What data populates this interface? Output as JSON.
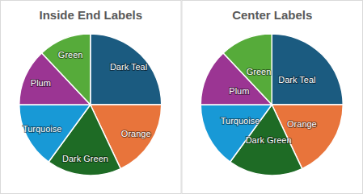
{
  "chart_data": [
    {
      "type": "pie",
      "title": "Inside End Labels",
      "categories": [
        "Dark Teal",
        "Orange",
        "Dark Green",
        "Turquoise",
        "Plum",
        "Green"
      ],
      "values": [
        25,
        18,
        17,
        15,
        13,
        12
      ],
      "colors": [
        "#1b5b80",
        "#e8743b",
        "#1e6b25",
        "#1899d6",
        "#9b3593",
        "#56ab3a"
      ]
    },
    {
      "type": "pie",
      "title": "Center Labels",
      "categories": [
        "Dark Teal",
        "Orange",
        "Dark Green",
        "Turquoise",
        "Plum",
        "Green"
      ],
      "values": [
        25,
        18,
        17,
        15,
        13,
        12
      ],
      "colors": [
        "#1b5b80",
        "#e8743b",
        "#1e6b25",
        "#1899d6",
        "#9b3593",
        "#56ab3a"
      ]
    }
  ]
}
